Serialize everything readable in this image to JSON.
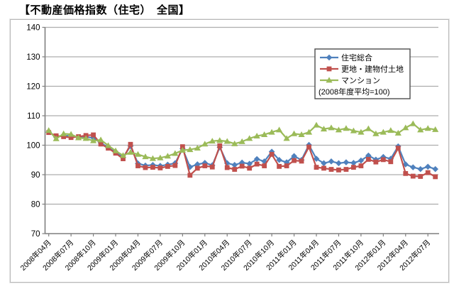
{
  "title": "【不動産価格指数（住宅）　全国】",
  "chart_data": {
    "type": "line",
    "title": "【不動産価格指数（住宅）　全国】",
    "legend_note": "(2008年度平均=100)",
    "legend_position": "top-right-inside",
    "grid": true,
    "ylim": [
      70,
      140
    ],
    "ytick_step": 10,
    "ytick_labels": [
      "70",
      "80",
      "90",
      "100",
      "110",
      "120",
      "130",
      "140"
    ],
    "x_tick_every": 3,
    "x_tick_labels": [
      "2008年04月",
      "2008年07月",
      "2008年10月",
      "2009年01月",
      "2009年04月",
      "2009年07月",
      "2009年10月",
      "2010年01月",
      "2010年04月",
      "2010年07月",
      "2010年10月",
      "2011年01月",
      "2011年04月",
      "2011年07月",
      "2011年10月",
      "2012年01月",
      "2012年04月",
      "2012年07月"
    ],
    "months": [
      "2008-04",
      "2008-05",
      "2008-06",
      "2008-07",
      "2008-08",
      "2008-09",
      "2008-10",
      "2008-11",
      "2008-12",
      "2009-01",
      "2009-02",
      "2009-03",
      "2009-04",
      "2009-05",
      "2009-06",
      "2009-07",
      "2009-08",
      "2009-09",
      "2009-10",
      "2009-11",
      "2009-12",
      "2010-01",
      "2010-02",
      "2010-03",
      "2010-04",
      "2010-05",
      "2010-06",
      "2010-07",
      "2010-08",
      "2010-09",
      "2010-10",
      "2010-11",
      "2010-12",
      "2011-01",
      "2011-02",
      "2011-03",
      "2011-04",
      "2011-05",
      "2011-06",
      "2011-07",
      "2011-08",
      "2011-09",
      "2011-10",
      "2011-11",
      "2011-12",
      "2012-01",
      "2012-02",
      "2012-03",
      "2012-04",
      "2012-05",
      "2012-06",
      "2012-07",
      "2012-08"
    ],
    "series": [
      {
        "name": "住宅総合",
        "marker": "diamond",
        "color": "#4F81BD",
        "values": [
          104.5,
          102.8,
          103.3,
          103.1,
          102.7,
          102.8,
          102.5,
          100.8,
          99.2,
          97.6,
          95.9,
          99.7,
          93.8,
          93.1,
          93.3,
          93.0,
          93.4,
          93.9,
          98.8,
          92.6,
          93.5,
          94.0,
          93.2,
          99.3,
          93.9,
          93.3,
          94.1,
          93.7,
          95.3,
          94.5,
          97.8,
          95.0,
          94.2,
          96.3,
          95.0,
          100.1,
          95.4,
          93.9,
          94.5,
          93.9,
          94.2,
          94.0,
          94.8,
          96.5,
          95.1,
          96.0,
          95.4,
          99.6,
          93.5,
          92.5,
          91.9,
          92.7,
          91.9
        ]
      },
      {
        "name": "更地・建物付土地",
        "marker": "square",
        "color": "#C0504D",
        "values": [
          104.3,
          103.2,
          102.9,
          102.6,
          102.9,
          103.3,
          103.5,
          100.4,
          99.0,
          97.3,
          95.4,
          100.3,
          93.0,
          92.4,
          92.5,
          92.3,
          92.8,
          93.1,
          99.5,
          89.8,
          92.2,
          93.0,
          92.6,
          99.8,
          92.4,
          91.8,
          92.9,
          92.2,
          93.6,
          93.0,
          96.9,
          92.8,
          93.0,
          94.8,
          94.6,
          99.4,
          92.5,
          92.2,
          91.8,
          91.6,
          91.8,
          92.5,
          93.0,
          95.2,
          94.3,
          95.1,
          94.4,
          99.0,
          90.4,
          89.5,
          89.4,
          90.7,
          89.3
        ]
      },
      {
        "name": "マンション",
        "marker": "triangle",
        "color": "#9BBB59",
        "values": [
          105.0,
          102.2,
          103.9,
          103.7,
          102.5,
          102.3,
          101.5,
          101.8,
          99.9,
          98.1,
          96.5,
          97.6,
          96.9,
          96.1,
          95.5,
          95.7,
          96.3,
          97.2,
          98.3,
          98.5,
          99.0,
          100.4,
          101.4,
          101.6,
          101.3,
          100.5,
          101.2,
          102.3,
          103.1,
          103.6,
          104.4,
          105.2,
          102.3,
          103.9,
          103.6,
          104.4,
          106.8,
          105.5,
          105.9,
          105.2,
          105.7,
          104.9,
          104.4,
          105.6,
          103.9,
          104.4,
          105.0,
          104.1,
          105.9,
          107.3,
          105.2,
          105.7,
          105.3
        ]
      }
    ],
    "colors": {
      "gridline": "#ADADAD",
      "axis": "#7F7F7F",
      "tick_label": "#000000",
      "legend_border": "#4D4D4D",
      "frame_border": "#B9B9B9"
    }
  }
}
